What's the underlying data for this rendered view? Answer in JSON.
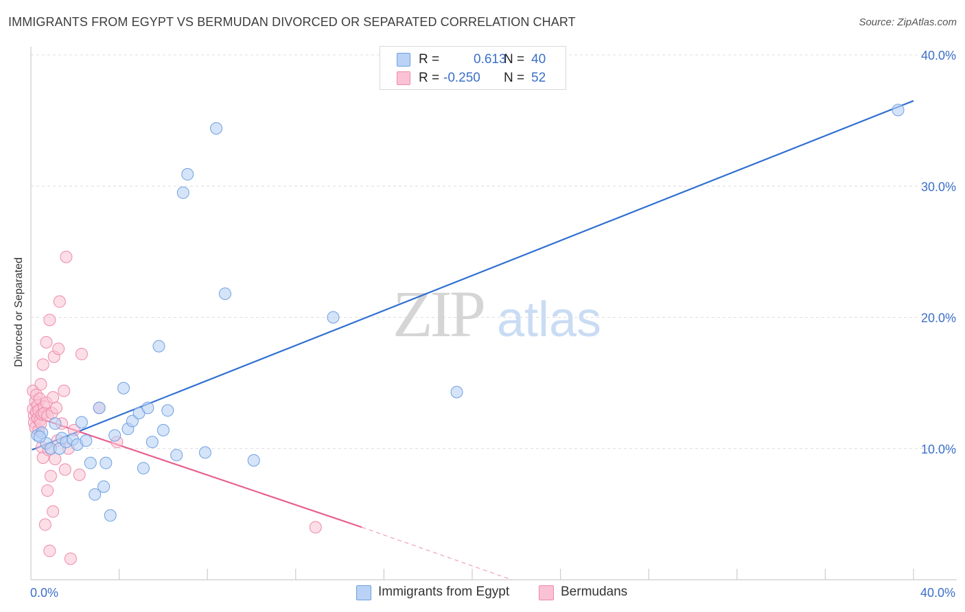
{
  "header": {
    "title": "IMMIGRANTS FROM EGYPT VS BERMUDAN DIVORCED OR SEPARATED CORRELATION CHART",
    "source": "Source: ZipAtlas.com"
  },
  "watermark": {
    "zip": "ZIP",
    "atlas": "atlas"
  },
  "legend": {
    "rows": [
      {
        "r_label": "R =",
        "r_value": "0.613",
        "n_label": "N =",
        "n_value": "40",
        "fill": "#b9d2f5",
        "stroke": "#6e9fe0"
      },
      {
        "r_label": "R =",
        "r_value": "-0.250",
        "n_label": "N =",
        "n_value": "52",
        "fill": "#fac2d4",
        "stroke": "#ee8aaa"
      }
    ]
  },
  "bottom_legend": [
    {
      "label": "Immigrants from Egypt",
      "fill": "#b9d2f5",
      "stroke": "#6e9fe0"
    },
    {
      "label": "Bermudans",
      "fill": "#fac2d4",
      "stroke": "#ee8aaa"
    }
  ],
  "colors": {
    "blue_line": "#2f6fd1",
    "pink_line": "#e8608f",
    "blue_point_fill": "#b9d2f5",
    "blue_point_stroke": "#6e9fe0",
    "pink_point_fill": "#fac2d4",
    "pink_point_stroke": "#ee8aaa",
    "grid": "#dcdcdc",
    "axis": "#cccccc",
    "tick_text": "#3b6fc9"
  },
  "chart_data": {
    "type": "scatter",
    "title": "IMMIGRANTS FROM EGYPT VS BERMUDAN DIVORCED OR SEPARATED CORRELATION CHART",
    "xlabel": "",
    "ylabel": "Divorced or Separated",
    "xlim": [
      0,
      40
    ],
    "ylim": [
      0,
      40
    ],
    "x_tick_labels": [
      {
        "value": 0,
        "label": "0.0%"
      },
      {
        "value": 40,
        "label": "40.0%"
      }
    ],
    "y_tick_labels": [
      {
        "value": 10,
        "label": "10.0%"
      },
      {
        "value": 20,
        "label": "20.0%"
      },
      {
        "value": 30,
        "label": "30.0%"
      },
      {
        "value": 40,
        "label": "40.0%"
      }
    ],
    "x_minor_ticks": [
      4,
      8,
      12,
      16,
      20,
      24,
      28,
      32,
      36,
      40
    ],
    "series": [
      {
        "name": "Immigrants from Egypt",
        "r": 0.613,
        "n": 40,
        "points": [
          [
            0.3,
            11.0
          ],
          [
            0.5,
            11.2
          ],
          [
            0.7,
            10.4
          ],
          [
            0.9,
            10.0
          ],
          [
            1.1,
            11.9
          ],
          [
            1.3,
            10.0
          ],
          [
            1.4,
            10.8
          ],
          [
            1.6,
            10.5
          ],
          [
            1.9,
            10.7
          ],
          [
            2.1,
            10.3
          ],
          [
            2.3,
            12.0
          ],
          [
            2.5,
            10.6
          ],
          [
            2.7,
            8.9
          ],
          [
            2.9,
            6.5
          ],
          [
            3.1,
            13.1
          ],
          [
            3.3,
            7.1
          ],
          [
            3.4,
            8.9
          ],
          [
            3.6,
            4.9
          ],
          [
            3.8,
            11.0
          ],
          [
            4.2,
            14.6
          ],
          [
            4.4,
            11.5
          ],
          [
            4.6,
            12.1
          ],
          [
            4.9,
            12.7
          ],
          [
            5.1,
            8.5
          ],
          [
            5.3,
            13.1
          ],
          [
            5.5,
            10.5
          ],
          [
            5.8,
            17.8
          ],
          [
            6.0,
            11.4
          ],
          [
            6.2,
            12.9
          ],
          [
            6.6,
            9.5
          ],
          [
            6.9,
            29.5
          ],
          [
            7.1,
            30.9
          ],
          [
            7.9,
            9.7
          ],
          [
            8.4,
            34.4
          ],
          [
            8.8,
            21.8
          ],
          [
            10.1,
            9.1
          ],
          [
            13.7,
            20.0
          ],
          [
            19.3,
            14.3
          ],
          [
            39.3,
            35.8
          ],
          [
            0.4,
            10.9
          ]
        ],
        "trend": {
          "x0": 0.05,
          "y0": 9.9,
          "x1": 40.0,
          "y1": 36.5
        }
      },
      {
        "name": "Bermudans",
        "r": -0.25,
        "n": 52,
        "points": [
          [
            0.1,
            14.4
          ],
          [
            0.1,
            13.0
          ],
          [
            0.15,
            12.5
          ],
          [
            0.15,
            12.0
          ],
          [
            0.2,
            11.6
          ],
          [
            0.2,
            13.6
          ],
          [
            0.25,
            12.8
          ],
          [
            0.25,
            14.1
          ],
          [
            0.3,
            12.3
          ],
          [
            0.3,
            13.3
          ],
          [
            0.35,
            11.4
          ],
          [
            0.35,
            12.9
          ],
          [
            0.4,
            12.1
          ],
          [
            0.4,
            13.8
          ],
          [
            0.45,
            11.9
          ],
          [
            0.45,
            14.9
          ],
          [
            0.5,
            12.6
          ],
          [
            0.5,
            10.1
          ],
          [
            0.55,
            16.4
          ],
          [
            0.55,
            9.3
          ],
          [
            0.6,
            13.2
          ],
          [
            0.6,
            12.7
          ],
          [
            0.65,
            4.2
          ],
          [
            0.7,
            13.5
          ],
          [
            0.7,
            18.1
          ],
          [
            0.75,
            12.5
          ],
          [
            0.75,
            6.8
          ],
          [
            0.8,
            9.9
          ],
          [
            0.85,
            19.8
          ],
          [
            0.85,
            2.2
          ],
          [
            0.9,
            7.9
          ],
          [
            0.95,
            12.7
          ],
          [
            1.0,
            13.9
          ],
          [
            1.0,
            5.2
          ],
          [
            1.05,
            17.0
          ],
          [
            1.1,
            9.2
          ],
          [
            1.15,
            13.1
          ],
          [
            1.2,
            10.6
          ],
          [
            1.25,
            17.6
          ],
          [
            1.3,
            21.2
          ],
          [
            1.4,
            11.9
          ],
          [
            1.5,
            14.4
          ],
          [
            1.55,
            8.4
          ],
          [
            1.6,
            24.6
          ],
          [
            1.7,
            10.0
          ],
          [
            1.8,
            1.6
          ],
          [
            1.95,
            11.4
          ],
          [
            2.2,
            8.0
          ],
          [
            2.3,
            17.2
          ],
          [
            3.1,
            13.1
          ],
          [
            3.9,
            10.5
          ],
          [
            12.9,
            4.0
          ]
        ],
        "trend": {
          "x0": 0.05,
          "y0": 12.5,
          "x1": 15.0,
          "y1": 4.0
        },
        "trend_extension": {
          "x0": 15.0,
          "y0": 4.0,
          "x1": 21.8,
          "y1": 0.0
        }
      }
    ]
  }
}
